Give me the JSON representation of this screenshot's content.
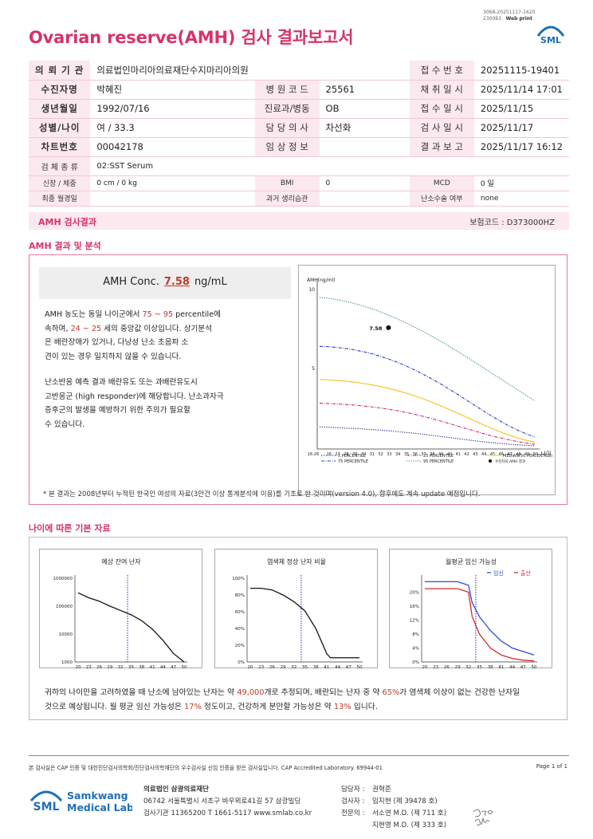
{
  "header": {
    "code_line1": "3068-20251117-1620",
    "code_line2": "230083",
    "web_print": "Web print",
    "title": "Ovarian reserve(AMH) 검사 결과보고서",
    "logo_text": "SML"
  },
  "info": {
    "rows": [
      {
        "l1": "의 뢰 기 관",
        "v1": "의료법인마리아의료재단수지마리아의원",
        "l2": "",
        "v2": "",
        "l3": "접 수 번 호",
        "v3": "20251115-19401"
      },
      {
        "l1": "수진자명",
        "v1": "박혜진",
        "l2": "병 원 코 드",
        "v2": "25561",
        "l3": "채 취 일 시",
        "v3": "2025/11/14 17:01"
      },
      {
        "l1": "생년월일",
        "v1": "1992/07/16",
        "l2": "진료과/병동",
        "v2": "OB",
        "l3": "접 수 일 시",
        "v3": "2025/11/15"
      },
      {
        "l1": "성별/나이",
        "v1": "여 / 33.3",
        "l2": "담 당 의 사",
        "v2": "차선화",
        "l3": "검 사 일 시",
        "v3": "2025/11/17"
      },
      {
        "l1": "차트번호",
        "v1": "00042178",
        "l2": "임 상 정 보",
        "v2": "",
        "l3": "결 과 보 고",
        "v3": "2025/11/17 16:12"
      }
    ],
    "specimen_label": "검 체 종 류",
    "specimen_value": "02:SST Serum",
    "small_rows": [
      {
        "l1": "신장 / 체중",
        "v1": "0 cm / 0 kg",
        "l2": "BMI",
        "v2": "0",
        "l3": "MCD",
        "v3": "0 일"
      },
      {
        "l1": "최종 월경일",
        "v1": "",
        "l2": "과거 생리습관",
        "v2": "",
        "l3": "난소수술 여부",
        "v3": "none"
      }
    ]
  },
  "amh_section": {
    "bar_title": "AMH 검사결과",
    "insurance_code": "보험코드 : D373000HZ",
    "heading": "AMH 결과 및 분석",
    "conc_label": "AMH Conc.",
    "conc_value": "7.58",
    "conc_unit": "ng/mL",
    "para1": [
      {
        "t": "AMH 농도는 동일 나이군에서 ",
        "c": ""
      },
      {
        "t": "75 ~ 95",
        "c": "red"
      },
      {
        "t": " percentile에",
        "c": ""
      },
      {
        "t": "\n속하며, ",
        "c": ""
      },
      {
        "t": "24 ~ 25",
        "c": "red"
      },
      {
        "t": " 세의 중앙값 이상입니다. 상기분석",
        "c": ""
      },
      {
        "t": "\n은 배란장애가 있거나, 다낭성 난소 초음파 소",
        "c": ""
      },
      {
        "t": "\n견이 있는 경우 일치하지 않을 수 있습니다.",
        "c": ""
      }
    ],
    "para2": "난소반응 예측 결과 배란유도 또는 과배란유도시\n고반응군 (high responder)에 해당합니다. 난소과자극\n 증후군의 발생을 예방하기 위한 주의가 필요할\n 수 있습니다.",
    "footnote": "* 본 결과는 2008년부터 누적된 한국인 여성의 자료(3만건 이상 통계분석에 이용)를 기초로 한 것이며(version 4.0), 향후에도 계속 update 예정입니다."
  },
  "chart_data": [
    {
      "type": "line",
      "ylabel": "AMH(ng/ml)",
      "xlabel": "나이",
      "ylim": [
        0,
        10
      ],
      "yticks": [
        "10",
        "5"
      ],
      "categories": [
        "16-26",
        "26",
        "27",
        "28",
        "29",
        "30",
        "31",
        "32",
        "33",
        "34",
        "35",
        "36",
        "37",
        "38",
        "39",
        "40",
        "41",
        "42",
        "43",
        "44",
        "45",
        "46",
        "47",
        "48",
        "49",
        "50"
      ],
      "series": [
        {
          "name": "5 PERCENTILE",
          "color": "#1a1a8c",
          "style": "dotted",
          "values": [
            1.3,
            1.28,
            1.25,
            1.22,
            1.2,
            1.17,
            1.13,
            1.1,
            1.05,
            1.0,
            0.95,
            0.9,
            0.84,
            0.77,
            0.7,
            0.63,
            0.56,
            0.49,
            0.42,
            0.36,
            0.3,
            0.25,
            0.2,
            0.16,
            0.13,
            0.1
          ]
        },
        {
          "name": "25 PERCENTILE",
          "color": "#cc2277",
          "style": "dashdot",
          "values": [
            2.8,
            2.78,
            2.75,
            2.72,
            2.68,
            2.63,
            2.57,
            2.5,
            2.42,
            2.33,
            2.22,
            2.1,
            1.97,
            1.83,
            1.68,
            1.52,
            1.36,
            1.2,
            1.04,
            0.88,
            0.73,
            0.6,
            0.48,
            0.37,
            0.28,
            0.2
          ]
        },
        {
          "name": "MEDIAN(50 PERCENTILE)",
          "color": "#f0c419",
          "style": "solid",
          "values": [
            4.3,
            4.28,
            4.24,
            4.2,
            4.14,
            4.06,
            3.97,
            3.86,
            3.74,
            3.6,
            3.45,
            3.27,
            3.08,
            2.87,
            2.65,
            2.42,
            2.18,
            1.93,
            1.68,
            1.44,
            1.2,
            0.98,
            0.78,
            0.6,
            0.45,
            0.33
          ]
        },
        {
          "name": "75 PERCENTILE",
          "color": "#2b3ec8",
          "style": "dashdot",
          "values": [
            6.4,
            6.38,
            6.33,
            6.27,
            6.18,
            6.07,
            5.94,
            5.78,
            5.6,
            5.4,
            5.17,
            4.92,
            4.64,
            4.35,
            4.04,
            3.71,
            3.37,
            3.02,
            2.67,
            2.32,
            1.98,
            1.66,
            1.36,
            1.09,
            0.86,
            0.66
          ]
        },
        {
          "name": "95 PERCENTILE",
          "color": "#2e8b57",
          "style": "dotted",
          "values": [
            9.5,
            9.45,
            9.36,
            9.25,
            9.12,
            8.97,
            8.8,
            8.6,
            8.38,
            8.15,
            7.9,
            7.63,
            7.35,
            7.05,
            6.74,
            6.42,
            6.09,
            5.75,
            5.4,
            5.05,
            4.7,
            4.35,
            4.0,
            3.65,
            3.3,
            2.95
          ]
        }
      ],
      "marker": {
        "name": "수진자의 AMH 결과",
        "x": "33",
        "y": 7.58,
        "label": "7.58"
      }
    },
    {
      "type": "line",
      "title": "예상 잔여 난자",
      "yscale": "log",
      "yticks": [
        "1000000",
        "100000",
        "10000",
        "1000"
      ],
      "xticks": [
        "20",
        "23",
        "26",
        "29",
        "32",
        "35",
        "38",
        "41",
        "44",
        "47",
        "50"
      ],
      "x": [
        20,
        23,
        26,
        29,
        32,
        35,
        38,
        41,
        44,
        47,
        50
      ],
      "values": [
        300000,
        200000,
        150000,
        100000,
        70000,
        49000,
        30000,
        15000,
        6000,
        2000,
        1000
      ],
      "marker_x": 34
    },
    {
      "type": "line",
      "title": "염색체 정상 난자 비율",
      "yticks": [
        "100%",
        "80%",
        "60%",
        "40%",
        "20%",
        "0%"
      ],
      "xticks": [
        "20",
        "23",
        "26",
        "29",
        "32",
        "35",
        "38",
        "41",
        "44",
        "47",
        "50"
      ],
      "x": [
        20,
        23,
        26,
        29,
        32,
        35,
        38,
        41,
        42,
        44,
        47,
        50
      ],
      "values": [
        88,
        88,
        86,
        80,
        72,
        61,
        40,
        10,
        5,
        5,
        5,
        5
      ],
      "marker_x": 34
    },
    {
      "type": "line",
      "title": "월평균 임신 가능성",
      "yticks": [
        "20%",
        "16%",
        "12%",
        "8%",
        "4%",
        "0%"
      ],
      "xticks": [
        "20",
        "23",
        "26",
        "29",
        "32",
        "35",
        "38",
        "41",
        "44",
        "47",
        "50"
      ],
      "legend": [
        "임신",
        "출산"
      ],
      "x": [
        20,
        23,
        26,
        29,
        32,
        33,
        35,
        38,
        41,
        44,
        47,
        50
      ],
      "series": [
        {
          "name": "임신",
          "color": "#2e4bd6",
          "values": [
            23,
            23,
            23,
            23,
            22,
            17,
            13,
            9,
            6,
            4,
            3,
            2
          ]
        },
        {
          "name": "출산",
          "color": "#d22b2b",
          "values": [
            21,
            21,
            21,
            21,
            20,
            13,
            8,
            4,
            2,
            1,
            0.5,
            0.3
          ]
        }
      ],
      "marker_x": 34
    }
  ],
  "age_section": {
    "heading": "나이에 따른 기본 자료",
    "summary": [
      {
        "t": "귀하의 나이만을 고려하였을 때 난소에 남아있는 난자는 약 ",
        "c": ""
      },
      {
        "t": "49,000",
        "c": "red"
      },
      {
        "t": "개로 추정되며, 배란되는 난자 중 약 ",
        "c": ""
      },
      {
        "t": "65%",
        "c": "red"
      },
      {
        "t": "가 염색체 이상이 없는 건강한 난자일",
        "c": ""
      },
      {
        "t": "\n것으로 예상됩니다. 월 평균 임신 가능성은 ",
        "c": ""
      },
      {
        "t": "17%",
        "c": "red"
      },
      {
        "t": " 정도이고, 건강하게 분만할 가능성은 약 ",
        "c": ""
      },
      {
        "t": "13%",
        "c": "red"
      },
      {
        "t": " 입니다.",
        "c": ""
      }
    ]
  },
  "footer": {
    "cert": "본 검사실은 CAP 인증 및 대한진단검사의학회/진단검사의학재단의 우수검사실 신임 인증을 받은 검사실입니다.  CAP Accredited Laboratory. 69944-01",
    "page": "Page 1 of 1",
    "logo_sml": "SML",
    "logo_line1": "Samkwang",
    "logo_line2": "Medical Lab",
    "org_name": "의료법인 삼광의료재단",
    "org_addr": "06742 서울특별시 서초구 바우뫼로41길 57 삼광빌딩",
    "org_contact": "검사기관 11365200  T 1661-5117  www.smlab.co.kr",
    "staff": [
      {
        "role": "담당자 :",
        "name": "권혁준"
      },
      {
        "role": "검사자 :",
        "name": "임지현 (제 39478 호)"
      },
      {
        "role": "전문의 :",
        "name": "서소연 M.D. (제 711 호)"
      },
      {
        "role": "",
        "name": "지현영 M.D. (제 333 호)"
      }
    ]
  }
}
